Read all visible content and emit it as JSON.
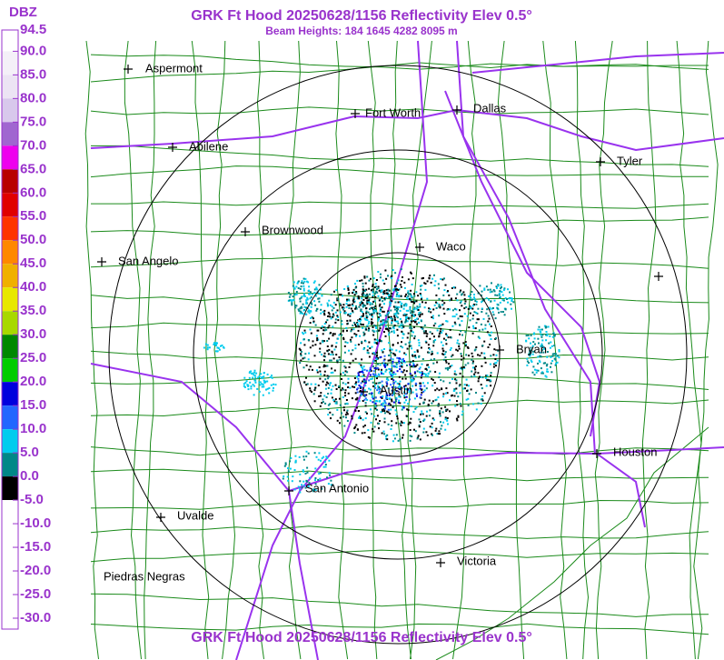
{
  "header": {
    "title": "GRK Ft Hood 20250628/1156 Reflectivity Elev 0.5°",
    "subtitle": "Beam Heights: 184 1645 4282 8095 m"
  },
  "footer": {
    "title": "GRK Ft Hood 20250628/1156 Reflectivity Elev 0.5°"
  },
  "legend": {
    "title": "DBZ",
    "ticks": [
      94.5,
      {
        "value": 90,
        "label": "90.0"
      },
      {
        "value": 85,
        "label": "85.0"
      },
      {
        "value": 80,
        "label": "80.0"
      },
      {
        "value": 75,
        "label": "75.0"
      },
      {
        "value": 70,
        "label": "70.0"
      },
      {
        "value": 65,
        "label": "65.0"
      },
      {
        "value": 60,
        "label": "60.0"
      },
      {
        "value": 55,
        "label": "55.0"
      },
      {
        "value": 50,
        "label": "50.0"
      },
      {
        "value": 45,
        "label": "45.0"
      },
      {
        "value": 40,
        "label": "40.0"
      },
      {
        "value": 35,
        "label": "35.0"
      },
      {
        "value": 30,
        "label": "30.0"
      },
      {
        "value": 25,
        "label": "25.0"
      },
      {
        "value": 20,
        "label": "20.0"
      },
      {
        "value": 15,
        "label": "15.0"
      },
      {
        "value": 10,
        "label": "10.0"
      },
      {
        "value": 5,
        "label": "5.0"
      },
      {
        "value": 0,
        "label": "0.0"
      },
      {
        "value": -5,
        "label": "-5.0"
      },
      {
        "value": -10,
        "label": "-10.0"
      },
      {
        "value": -15,
        "label": "-15.0"
      },
      {
        "value": -20,
        "label": "-20.0"
      },
      {
        "value": -25,
        "label": "-25.0"
      },
      {
        "value": -30,
        "label": "-30.0"
      }
    ],
    "colors": [
      "#ffffff",
      "#f4f0f8",
      "#ece4f4",
      "#d8c8ec",
      "#a066d0",
      "#ee00ee",
      "#b80000",
      "#e00000",
      "#ff3300",
      "#ff8800",
      "#f0b000",
      "#e8e800",
      "#a8d800",
      "#008800",
      "#00cc00",
      "#0000dd",
      "#2266ff",
      "#00ccee",
      "#008888",
      "#000000",
      "#ffffff",
      "#ffffff",
      "#ffffff",
      "#ffffff",
      "#ffffff"
    ]
  },
  "cities": [
    "Aspermont",
    "Fort Worth",
    "Dallas",
    "Abilene",
    "Tyler",
    "Brownwood",
    "Waco",
    "San Angelo",
    "Bryan",
    "Austin",
    "Houston",
    "San Antonio",
    "Uvalde",
    "Victoria",
    "Piedras Negras"
  ]
}
